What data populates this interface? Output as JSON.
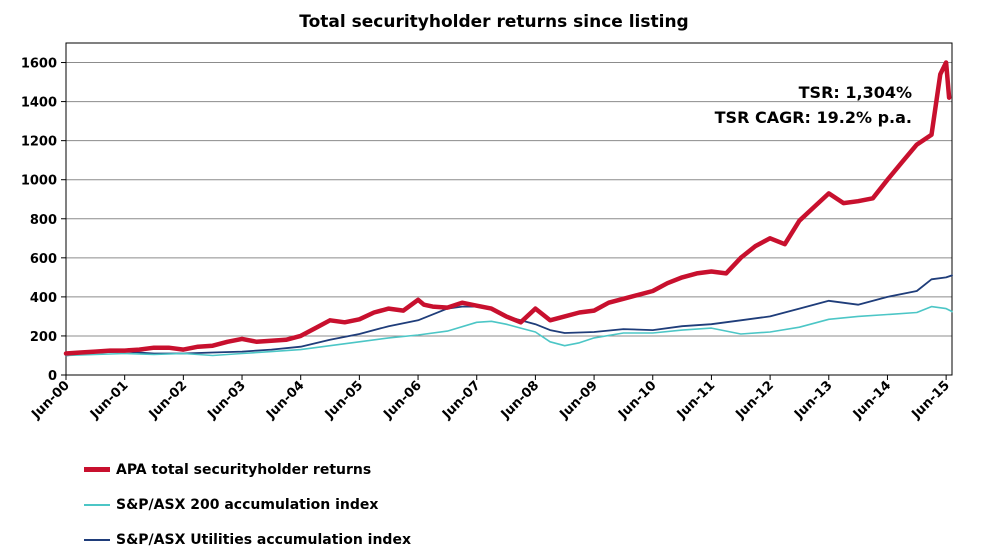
{
  "chart_data": {
    "type": "line",
    "title": "Total securityholder returns since listing",
    "xlabel": "",
    "ylabel": "",
    "x_tick_labels": [
      "Jun-00",
      "Jun-01",
      "Jun-02",
      "Jun-03",
      "Jun-04",
      "Jun-05",
      "Jun-06",
      "Jun-07",
      "Jun-08",
      "Jun-09",
      "Jun-10",
      "Jun-11",
      "Jun-12",
      "Jun-13",
      "Jun-14",
      "Jun-15"
    ],
    "y_ticks": [
      0,
      200,
      400,
      600,
      800,
      1000,
      1200,
      1400,
      1600
    ],
    "ylim": [
      0,
      1700
    ],
    "xlim": [
      0,
      15.1
    ],
    "grid": "horizontal",
    "legend_position": "bottom-left",
    "annotations": [
      "TSR: 1,304%",
      "TSR CAGR: 19.2% p.a."
    ],
    "series": [
      {
        "name": "APA total securityholder returns",
        "color": "#c8102e",
        "x": [
          0,
          0.25,
          0.5,
          0.75,
          1,
          1.25,
          1.5,
          1.75,
          2,
          2.25,
          2.5,
          2.75,
          3,
          3.25,
          3.5,
          3.75,
          4,
          4.25,
          4.5,
          4.75,
          5,
          5.25,
          5.5,
          5.75,
          6,
          6.1,
          6.25,
          6.5,
          6.75,
          7,
          7.25,
          7.5,
          7.75,
          8,
          8.25,
          8.5,
          8.75,
          9,
          9.25,
          9.5,
          9.75,
          10,
          10.25,
          10.5,
          10.75,
          11,
          11.25,
          11.5,
          11.75,
          12,
          12.25,
          12.5,
          12.75,
          13,
          13.25,
          13.5,
          13.75,
          14,
          14.25,
          14.5,
          14.75,
          14.9,
          15,
          15.05
        ],
        "values": [
          110,
          115,
          120,
          125,
          125,
          130,
          140,
          140,
          130,
          145,
          150,
          170,
          185,
          170,
          175,
          180,
          200,
          240,
          280,
          270,
          285,
          320,
          340,
          330,
          385,
          360,
          350,
          345,
          370,
          355,
          340,
          300,
          270,
          340,
          280,
          300,
          320,
          330,
          370,
          390,
          410,
          430,
          470,
          500,
          520,
          530,
          520,
          600,
          660,
          700,
          670,
          790,
          860,
          930,
          880,
          890,
          905,
          1000,
          1090,
          1180,
          1230,
          1540,
          1600,
          1420
        ]
      },
      {
        "name": "S&P/ASX 200 accumulation index",
        "color": "#4cc6c6",
        "x": [
          0,
          0.5,
          1,
          1.5,
          2,
          2.5,
          3,
          3.5,
          4,
          4.5,
          5,
          5.5,
          6,
          6.5,
          7,
          7.25,
          7.5,
          7.75,
          8,
          8.25,
          8.5,
          8.75,
          9,
          9.5,
          10,
          10.5,
          11,
          11.5,
          12,
          12.5,
          13,
          13.5,
          14,
          14.5,
          14.75,
          15,
          15.1
        ],
        "values": [
          100,
          105,
          110,
          105,
          110,
          100,
          110,
          120,
          130,
          150,
          170,
          190,
          205,
          225,
          270,
          275,
          260,
          240,
          220,
          170,
          150,
          165,
          190,
          215,
          215,
          230,
          240,
          210,
          220,
          245,
          285,
          300,
          310,
          320,
          350,
          340,
          325
        ]
      },
      {
        "name": "S&P/ASX Utilities accumulation index",
        "color": "#1f3d7a",
        "x": [
          0,
          0.5,
          1,
          1.5,
          2,
          2.5,
          3,
          3.5,
          4,
          4.5,
          5,
          5.5,
          6,
          6.5,
          6.75,
          7,
          7.25,
          7.5,
          7.75,
          8,
          8.25,
          8.5,
          9,
          9.5,
          10,
          10.5,
          11,
          11.5,
          12,
          12.5,
          13,
          13.5,
          14,
          14.5,
          14.75,
          15,
          15.1
        ],
        "values": [
          100,
          115,
          120,
          110,
          110,
          115,
          120,
          130,
          145,
          180,
          210,
          250,
          280,
          340,
          350,
          350,
          340,
          300,
          280,
          260,
          230,
          215,
          220,
          235,
          230,
          250,
          260,
          280,
          300,
          340,
          380,
          360,
          400,
          430,
          490,
          500,
          510
        ]
      }
    ]
  }
}
